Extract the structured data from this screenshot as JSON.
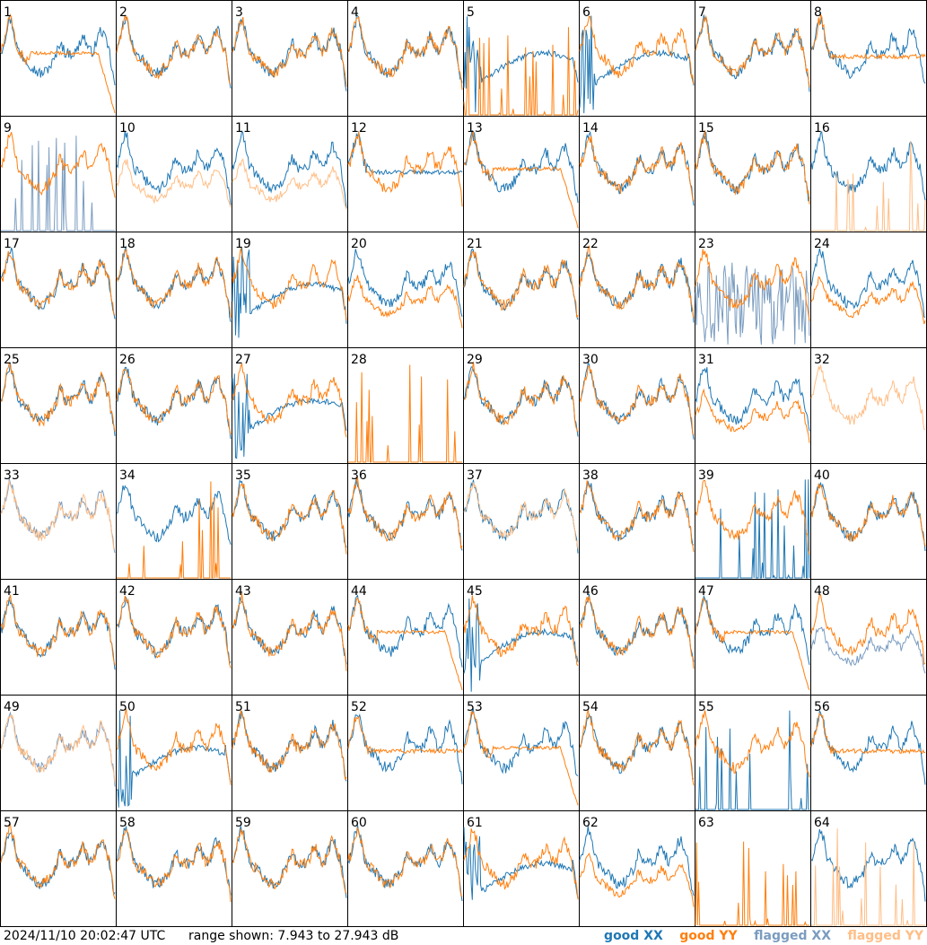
{
  "chart_data": {
    "type": "line",
    "layout": "small-multiples 8x8",
    "range_min_db": 7.943,
    "range_max_db": 27.943,
    "series_types": [
      "good XX",
      "good YY",
      "flagged XX",
      "flagged YY"
    ],
    "colors": {
      "good_xx": "#1f77b4",
      "good_yy": "#ff7f0e",
      "flagged_xx": "#7a9cc0",
      "flagged_yy": "#ffbe86",
      "border": "#000000"
    },
    "panels": [
      {
        "id": "1",
        "xx": "good",
        "yy": "good",
        "xx_shape": "normal",
        "yy_shape": "dropoff"
      },
      {
        "id": "2",
        "xx": "good",
        "yy": "good",
        "xx_shape": "normal",
        "yy_shape": "normal"
      },
      {
        "id": "3",
        "xx": "good",
        "yy": "good",
        "xx_shape": "normal",
        "yy_shape": "normal"
      },
      {
        "id": "4",
        "xx": "good",
        "yy": "good",
        "xx_shape": "normal",
        "yy_shape": "normal"
      },
      {
        "id": "5",
        "xx": "good",
        "yy": "good",
        "xx_shape": "bump",
        "yy_shape": "spikes"
      },
      {
        "id": "6",
        "xx": "good",
        "yy": "good",
        "xx_shape": "bump",
        "yy_shape": "normal"
      },
      {
        "id": "7",
        "xx": "good",
        "yy": "good",
        "xx_shape": "normal",
        "yy_shape": "normal"
      },
      {
        "id": "8",
        "xx": "good",
        "yy": "good",
        "xx_shape": "normal",
        "yy_shape": "flat"
      },
      {
        "id": "9",
        "xx": "flagged",
        "yy": "good",
        "xx_shape": "spikes",
        "yy_shape": "normal"
      },
      {
        "id": "10",
        "xx": "good",
        "yy": "flagged",
        "xx_shape": "normal",
        "yy_shape": "low"
      },
      {
        "id": "11",
        "xx": "good",
        "yy": "flagged",
        "xx_shape": "normal",
        "yy_shape": "low"
      },
      {
        "id": "12",
        "xx": "good",
        "yy": "good",
        "xx_shape": "flat",
        "yy_shape": "normal"
      },
      {
        "id": "13",
        "xx": "good",
        "yy": "good",
        "xx_shape": "normal",
        "yy_shape": "dropoff"
      },
      {
        "id": "14",
        "xx": "good",
        "yy": "good",
        "xx_shape": "normal",
        "yy_shape": "normal"
      },
      {
        "id": "15",
        "xx": "good",
        "yy": "good",
        "xx_shape": "normal",
        "yy_shape": "normal"
      },
      {
        "id": "16",
        "xx": "good",
        "yy": "flagged",
        "xx_shape": "normal",
        "yy_shape": "spikes"
      },
      {
        "id": "17",
        "xx": "good",
        "yy": "good",
        "xx_shape": "normal",
        "yy_shape": "normal"
      },
      {
        "id": "18",
        "xx": "good",
        "yy": "good",
        "xx_shape": "normal",
        "yy_shape": "normal"
      },
      {
        "id": "19",
        "xx": "good",
        "yy": "good",
        "xx_shape": "bump",
        "yy_shape": "normal"
      },
      {
        "id": "20",
        "xx": "good",
        "yy": "good",
        "xx_shape": "normal",
        "yy_shape": "low"
      },
      {
        "id": "21",
        "xx": "good",
        "yy": "good",
        "xx_shape": "normal",
        "yy_shape": "normal"
      },
      {
        "id": "22",
        "xx": "good",
        "yy": "good",
        "xx_shape": "normal",
        "yy_shape": "normal"
      },
      {
        "id": "23",
        "xx": "flagged",
        "yy": "good",
        "xx_shape": "noisy",
        "yy_shape": "normal"
      },
      {
        "id": "24",
        "xx": "good",
        "yy": "good",
        "xx_shape": "normal",
        "yy_shape": "low"
      },
      {
        "id": "25",
        "xx": "good",
        "yy": "good",
        "xx_shape": "normal",
        "yy_shape": "normal"
      },
      {
        "id": "26",
        "xx": "good",
        "yy": "good",
        "xx_shape": "normal",
        "yy_shape": "normal"
      },
      {
        "id": "27",
        "xx": "good",
        "yy": "good",
        "xx_shape": "bump",
        "yy_shape": "normal"
      },
      {
        "id": "28",
        "xx": "good",
        "yy": "good",
        "xx_shape": "none",
        "yy_shape": "spikes"
      },
      {
        "id": "29",
        "xx": "good",
        "yy": "good",
        "xx_shape": "normal",
        "yy_shape": "normal"
      },
      {
        "id": "30",
        "xx": "good",
        "yy": "good",
        "xx_shape": "normal",
        "yy_shape": "normal"
      },
      {
        "id": "31",
        "xx": "good",
        "yy": "good",
        "xx_shape": "normal",
        "yy_shape": "low"
      },
      {
        "id": "32",
        "xx": "good",
        "yy": "flagged",
        "xx_shape": "none",
        "yy_shape": "normal"
      },
      {
        "id": "33",
        "xx": "flagged",
        "yy": "flagged",
        "xx_shape": "normal",
        "yy_shape": "normal"
      },
      {
        "id": "34",
        "xx": "good",
        "yy": "good",
        "xx_shape": "normal",
        "yy_shape": "spikes"
      },
      {
        "id": "35",
        "xx": "good",
        "yy": "good",
        "xx_shape": "normal",
        "yy_shape": "normal"
      },
      {
        "id": "36",
        "xx": "good",
        "yy": "good",
        "xx_shape": "normal",
        "yy_shape": "normal"
      },
      {
        "id": "37",
        "xx": "good",
        "yy": "flagged",
        "xx_shape": "normal",
        "yy_shape": "normal"
      },
      {
        "id": "38",
        "xx": "good",
        "yy": "good",
        "xx_shape": "normal",
        "yy_shape": "normal"
      },
      {
        "id": "39",
        "xx": "good",
        "yy": "good",
        "xx_shape": "spikes",
        "yy_shape": "normal"
      },
      {
        "id": "40",
        "xx": "good",
        "yy": "good",
        "xx_shape": "normal",
        "yy_shape": "normal"
      },
      {
        "id": "41",
        "xx": "good",
        "yy": "good",
        "xx_shape": "normal",
        "yy_shape": "normal"
      },
      {
        "id": "42",
        "xx": "good",
        "yy": "good",
        "xx_shape": "normal",
        "yy_shape": "normal"
      },
      {
        "id": "43",
        "xx": "good",
        "yy": "good",
        "xx_shape": "normal",
        "yy_shape": "normal"
      },
      {
        "id": "44",
        "xx": "good",
        "yy": "good",
        "xx_shape": "normal",
        "yy_shape": "dropoff"
      },
      {
        "id": "45",
        "xx": "good",
        "yy": "good",
        "xx_shape": "bump",
        "yy_shape": "normal"
      },
      {
        "id": "46",
        "xx": "good",
        "yy": "good",
        "xx_shape": "normal",
        "yy_shape": "normal"
      },
      {
        "id": "47",
        "xx": "good",
        "yy": "good",
        "xx_shape": "normal",
        "yy_shape": "dropoff"
      },
      {
        "id": "48",
        "xx": "flagged",
        "yy": "good",
        "xx_shape": "low",
        "yy_shape": "normal"
      },
      {
        "id": "49",
        "xx": "flagged",
        "yy": "flagged",
        "xx_shape": "normal",
        "yy_shape": "normal"
      },
      {
        "id": "50",
        "xx": "good",
        "yy": "good",
        "xx_shape": "bump",
        "yy_shape": "normal"
      },
      {
        "id": "51",
        "xx": "good",
        "yy": "good",
        "xx_shape": "normal",
        "yy_shape": "normal"
      },
      {
        "id": "52",
        "xx": "good",
        "yy": "good",
        "xx_shape": "normal",
        "yy_shape": "flat"
      },
      {
        "id": "53",
        "xx": "good",
        "yy": "good",
        "xx_shape": "normal",
        "yy_shape": "dropoff"
      },
      {
        "id": "54",
        "xx": "good",
        "yy": "good",
        "xx_shape": "normal",
        "yy_shape": "normal"
      },
      {
        "id": "55",
        "xx": "good",
        "yy": "good",
        "xx_shape": "spikes",
        "yy_shape": "normal"
      },
      {
        "id": "56",
        "xx": "good",
        "yy": "good",
        "xx_shape": "normal",
        "yy_shape": "flat"
      },
      {
        "id": "57",
        "xx": "good",
        "yy": "good",
        "xx_shape": "normal",
        "yy_shape": "normal"
      },
      {
        "id": "58",
        "xx": "good",
        "yy": "good",
        "xx_shape": "normal",
        "yy_shape": "normal"
      },
      {
        "id": "59",
        "xx": "good",
        "yy": "good",
        "xx_shape": "normal",
        "yy_shape": "normal"
      },
      {
        "id": "60",
        "xx": "good",
        "yy": "good",
        "xx_shape": "normal",
        "yy_shape": "normal"
      },
      {
        "id": "61",
        "xx": "good",
        "yy": "good",
        "xx_shape": "bump",
        "yy_shape": "normal"
      },
      {
        "id": "62",
        "xx": "good",
        "yy": "good",
        "xx_shape": "normal",
        "yy_shape": "low"
      },
      {
        "id": "63",
        "xx": "good",
        "yy": "good",
        "xx_shape": "none",
        "yy_shape": "spikes"
      },
      {
        "id": "64",
        "xx": "good",
        "yy": "flagged",
        "xx_shape": "normal",
        "yy_shape": "spikes"
      }
    ]
  },
  "footer": {
    "timestamp": "2024/11/10 20:02:47 UTC",
    "range_text": "range shown: 7.943 to 27.943 dB",
    "legend": {
      "good_xx": "good XX",
      "good_yy": "good YY",
      "flagged_xx": "flagged XX",
      "flagged_yy": "flagged YY"
    }
  }
}
